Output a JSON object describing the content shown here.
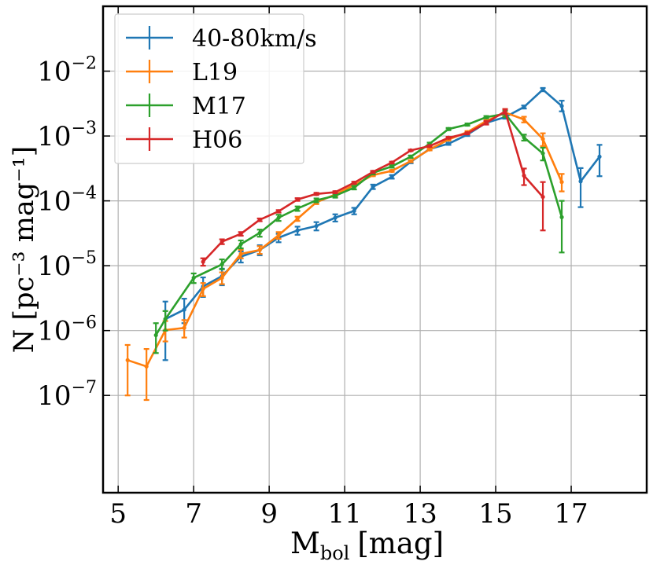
{
  "chart_data": {
    "type": "line",
    "title": "",
    "xlabel_main": "M",
    "xlabel_sub": "bol",
    "xlabel_unit": "[mag]",
    "ylabel": "N [pc⁻³ mag⁻¹]",
    "xlim": [
      4.6,
      19
    ],
    "ylim_log10": [
      -8.5,
      -1
    ],
    "xscale": "linear",
    "yscale": "log",
    "grid": true,
    "legend_position": "top-left",
    "x_ticks": [
      5,
      7,
      9,
      11,
      13,
      15,
      17
    ],
    "x_tick_labels": [
      "5",
      "7",
      "9",
      "11",
      "13",
      "15",
      "17"
    ],
    "y_ticks_log10": [
      -7,
      -6,
      -5,
      -4,
      -3,
      -2
    ],
    "y_tick_bases": [
      "10",
      "10",
      "10",
      "10",
      "10",
      "10"
    ],
    "y_tick_exponents": [
      "−7",
      "−6",
      "−5",
      "−4",
      "−3",
      "−2"
    ],
    "series": [
      {
        "name": "40-80km/s",
        "color": "#1f77b4",
        "points": [
          {
            "x": 6.25,
            "y": 1.5e-06,
            "lo": 3.5e-07,
            "hi": 2.8e-06
          },
          {
            "x": 6.75,
            "y": 2.1e-06,
            "lo": 1.3e-06,
            "hi": 3.1e-06
          },
          {
            "x": 7.25,
            "y": 4.8e-06,
            "lo": 3.3e-06,
            "hi": 6.6e-06
          },
          {
            "x": 7.75,
            "y": 6.9e-06,
            "lo": 5e-06,
            "hi": 9e-06
          },
          {
            "x": 8.25,
            "y": 1.38e-05,
            "lo": 1.12e-05,
            "hi": 1.66e-05
          },
          {
            "x": 8.75,
            "y": 1.75e-05,
            "lo": 1.45e-05,
            "hi": 2.07e-05
          },
          {
            "x": 9.25,
            "y": 2.7e-05,
            "lo": 2.3e-05,
            "hi": 3.1e-05
          },
          {
            "x": 9.75,
            "y": 3.5e-05,
            "lo": 3e-05,
            "hi": 4e-05
          },
          {
            "x": 10.25,
            "y": 4.1e-05,
            "lo": 3.5e-05,
            "hi": 4.7e-05
          },
          {
            "x": 10.75,
            "y": 5.5e-05,
            "lo": 4.8e-05,
            "hi": 6.2e-05
          },
          {
            "x": 11.25,
            "y": 7e-05,
            "lo": 6.2e-05,
            "hi": 7.8e-05
          },
          {
            "x": 11.75,
            "y": 0.000165,
            "lo": 0.000152,
            "hi": 0.000178
          },
          {
            "x": 12.25,
            "y": 0.000235,
            "lo": 0.00022,
            "hi": 0.00025
          },
          {
            "x": 12.75,
            "y": 0.0004,
            "lo": 0.00038,
            "hi": 0.00042
          },
          {
            "x": 13.25,
            "y": 0.00063,
            "lo": 0.0006,
            "hi": 0.00066
          },
          {
            "x": 13.75,
            "y": 0.00076,
            "lo": 0.00073,
            "hi": 0.00079
          },
          {
            "x": 14.25,
            "y": 0.00105,
            "lo": 0.001,
            "hi": 0.0011
          },
          {
            "x": 14.75,
            "y": 0.0016,
            "lo": 0.00153,
            "hi": 0.00167
          },
          {
            "x": 15.25,
            "y": 0.00195,
            "lo": 0.00185,
            "hi": 0.00205
          },
          {
            "x": 15.75,
            "y": 0.0028,
            "lo": 0.00265,
            "hi": 0.00295
          },
          {
            "x": 16.25,
            "y": 0.0052,
            "lo": 0.0049,
            "hi": 0.0055
          },
          {
            "x": 16.75,
            "y": 0.0029,
            "lo": 0.0024,
            "hi": 0.0035
          },
          {
            "x": 17.25,
            "y": 0.0002,
            "lo": 8e-05,
            "hi": 0.00032
          },
          {
            "x": 17.75,
            "y": 0.00048,
            "lo": 0.00024,
            "hi": 0.00073
          }
        ]
      },
      {
        "name": "L19",
        "color": "#ff7f0e",
        "points": [
          {
            "x": 5.25,
            "y": 3.5e-07,
            "lo": 1e-07,
            "hi": 6e-07
          },
          {
            "x": 5.75,
            "y": 2.8e-07,
            "lo": 8.5e-08,
            "hi": 5.2e-07
          },
          {
            "x": 6.25,
            "y": 1.02e-06,
            "lo": 6.8e-07,
            "hi": 1.4e-06
          },
          {
            "x": 6.75,
            "y": 1.1e-06,
            "lo": 7.8e-07,
            "hi": 1.45e-06
          },
          {
            "x": 7.25,
            "y": 4.4e-06,
            "lo": 3.4e-06,
            "hi": 5.4e-06
          },
          {
            "x": 7.75,
            "y": 6.5e-06,
            "lo": 5.2e-06,
            "hi": 7.9e-06
          },
          {
            "x": 8.25,
            "y": 1.52e-05,
            "lo": 1.3e-05,
            "hi": 1.76e-05
          },
          {
            "x": 8.75,
            "y": 1.75e-05,
            "lo": 1.52e-05,
            "hi": 2e-05
          },
          {
            "x": 9.25,
            "y": 2.95e-05,
            "lo": 2.6e-05,
            "hi": 3.3e-05
          },
          {
            "x": 9.75,
            "y": 5.3e-05,
            "lo": 4.9e-05,
            "hi": 5.7e-05
          },
          {
            "x": 10.25,
            "y": 9.5e-05,
            "lo": 8.9e-05,
            "hi": 0.000101
          },
          {
            "x": 10.75,
            "y": 0.000125,
            "lo": 0.000118,
            "hi": 0.000132
          },
          {
            "x": 11.25,
            "y": 0.000175,
            "lo": 0.000166,
            "hi": 0.000184
          },
          {
            "x": 11.75,
            "y": 0.00025,
            "lo": 0.00024,
            "hi": 0.00026
          },
          {
            "x": 12.25,
            "y": 0.00029,
            "lo": 0.00028,
            "hi": 0.0003
          },
          {
            "x": 12.75,
            "y": 0.00041,
            "lo": 0.000395,
            "hi": 0.000425
          },
          {
            "x": 13.25,
            "y": 0.00062,
            "lo": 0.0006,
            "hi": 0.00064
          },
          {
            "x": 13.75,
            "y": 0.00088,
            "lo": 0.00085,
            "hi": 0.00091
          },
          {
            "x": 14.25,
            "y": 0.00115,
            "lo": 0.00111,
            "hi": 0.00119
          },
          {
            "x": 14.75,
            "y": 0.0017,
            "lo": 0.00164,
            "hi": 0.00176
          },
          {
            "x": 15.25,
            "y": 0.0023,
            "lo": 0.002,
            "hi": 0.0026
          },
          {
            "x": 15.75,
            "y": 0.0018,
            "lo": 0.00162,
            "hi": 0.00198
          },
          {
            "x": 16.25,
            "y": 0.0009,
            "lo": 0.0007,
            "hi": 0.0011
          },
          {
            "x": 16.75,
            "y": 0.000195,
            "lo": 0.00014,
            "hi": 0.00026
          }
        ]
      },
      {
        "name": "M17",
        "color": "#2ca02c",
        "points": [
          {
            "x": 6.0,
            "y": 8.5e-07,
            "lo": 4.5e-07,
            "hi": 1.3e-06
          },
          {
            "x": 6.25,
            "y": 1.5e-06,
            "lo": 1e-06,
            "hi": 2e-06
          },
          {
            "x": 7.0,
            "y": 6.5e-06,
            "lo": 5.4e-06,
            "hi": 7.6e-06
          },
          {
            "x": 7.75,
            "y": 1.05e-05,
            "lo": 8.8e-06,
            "hi": 1.25e-05
          },
          {
            "x": 8.25,
            "y": 2.15e-05,
            "lo": 1.85e-05,
            "hi": 2.45e-05
          },
          {
            "x": 8.75,
            "y": 3.2e-05,
            "lo": 2.8e-05,
            "hi": 3.6e-05
          },
          {
            "x": 9.25,
            "y": 5.5e-05,
            "lo": 4.9e-05,
            "hi": 6.1e-05
          },
          {
            "x": 9.75,
            "y": 7.6e-05,
            "lo": 7e-05,
            "hi": 8.2e-05
          },
          {
            "x": 10.25,
            "y": 0.000102,
            "lo": 9.5e-05,
            "hi": 0.000109
          },
          {
            "x": 10.75,
            "y": 0.00012,
            "lo": 0.000112,
            "hi": 0.000128
          },
          {
            "x": 11.25,
            "y": 0.00016,
            "lo": 0.00015,
            "hi": 0.00017
          },
          {
            "x": 11.75,
            "y": 0.00027,
            "lo": 0.000255,
            "hi": 0.000285
          },
          {
            "x": 12.25,
            "y": 0.00034,
            "lo": 0.000325,
            "hi": 0.000355
          },
          {
            "x": 12.75,
            "y": 0.00048,
            "lo": 0.00046,
            "hi": 0.0005
          },
          {
            "x": 13.25,
            "y": 0.00076,
            "lo": 0.00073,
            "hi": 0.00079
          },
          {
            "x": 13.75,
            "y": 0.00128,
            "lo": 0.00123,
            "hi": 0.00133
          },
          {
            "x": 14.25,
            "y": 0.0015,
            "lo": 0.00144,
            "hi": 0.00156
          },
          {
            "x": 14.75,
            "y": 0.00195,
            "lo": 0.00187,
            "hi": 0.00203
          },
          {
            "x": 15.25,
            "y": 0.0022,
            "lo": 0.00195,
            "hi": 0.00245
          },
          {
            "x": 15.75,
            "y": 0.00095,
            "lo": 0.00085,
            "hi": 0.00105
          },
          {
            "x": 16.25,
            "y": 0.00054,
            "lo": 0.00042,
            "hi": 0.00066
          },
          {
            "x": 16.75,
            "y": 5.6e-05,
            "lo": 1.6e-05,
            "hi": 0.0001
          }
        ]
      },
      {
        "name": "H06",
        "color": "#d62728",
        "points": [
          {
            "x": 7.25,
            "y": 1.15e-05,
            "lo": 1e-05,
            "hi": 1.3e-05
          },
          {
            "x": 7.75,
            "y": 2.35e-05,
            "lo": 2.15e-05,
            "hi": 2.55e-05
          },
          {
            "x": 8.25,
            "y": 3.1e-05,
            "lo": 2.9e-05,
            "hi": 3.3e-05
          },
          {
            "x": 8.75,
            "y": 5.1e-05,
            "lo": 4.85e-05,
            "hi": 5.35e-05
          },
          {
            "x": 9.25,
            "y": 6.9e-05,
            "lo": 6.6e-05,
            "hi": 7.2e-05
          },
          {
            "x": 9.75,
            "y": 0.000105,
            "lo": 0.0001,
            "hi": 0.00011
          },
          {
            "x": 10.25,
            "y": 0.000128,
            "lo": 0.000123,
            "hi": 0.000133
          },
          {
            "x": 10.75,
            "y": 0.000136,
            "lo": 0.000131,
            "hi": 0.000141
          },
          {
            "x": 11.25,
            "y": 0.00019,
            "lo": 0.000183,
            "hi": 0.000197
          },
          {
            "x": 11.75,
            "y": 0.00028,
            "lo": 0.00027,
            "hi": 0.00029
          },
          {
            "x": 12.25,
            "y": 0.00039,
            "lo": 0.000378,
            "hi": 0.000402
          },
          {
            "x": 12.75,
            "y": 0.0006,
            "lo": 0.000585,
            "hi": 0.000615
          },
          {
            "x": 13.25,
            "y": 0.0007,
            "lo": 0.00068,
            "hi": 0.00072
          },
          {
            "x": 13.75,
            "y": 0.00094,
            "lo": 0.00091,
            "hi": 0.00097
          },
          {
            "x": 14.25,
            "y": 0.0011,
            "lo": 0.00106,
            "hi": 0.00114
          },
          {
            "x": 14.75,
            "y": 0.0016,
            "lo": 0.0015,
            "hi": 0.0017
          },
          {
            "x": 15.25,
            "y": 0.0024,
            "lo": 0.0022,
            "hi": 0.0026
          },
          {
            "x": 15.75,
            "y": 0.000245,
            "lo": 0.000175,
            "hi": 0.000315
          },
          {
            "x": 16.25,
            "y": 0.000115,
            "lo": 3.5e-05,
            "hi": 0.000195
          }
        ]
      }
    ]
  }
}
